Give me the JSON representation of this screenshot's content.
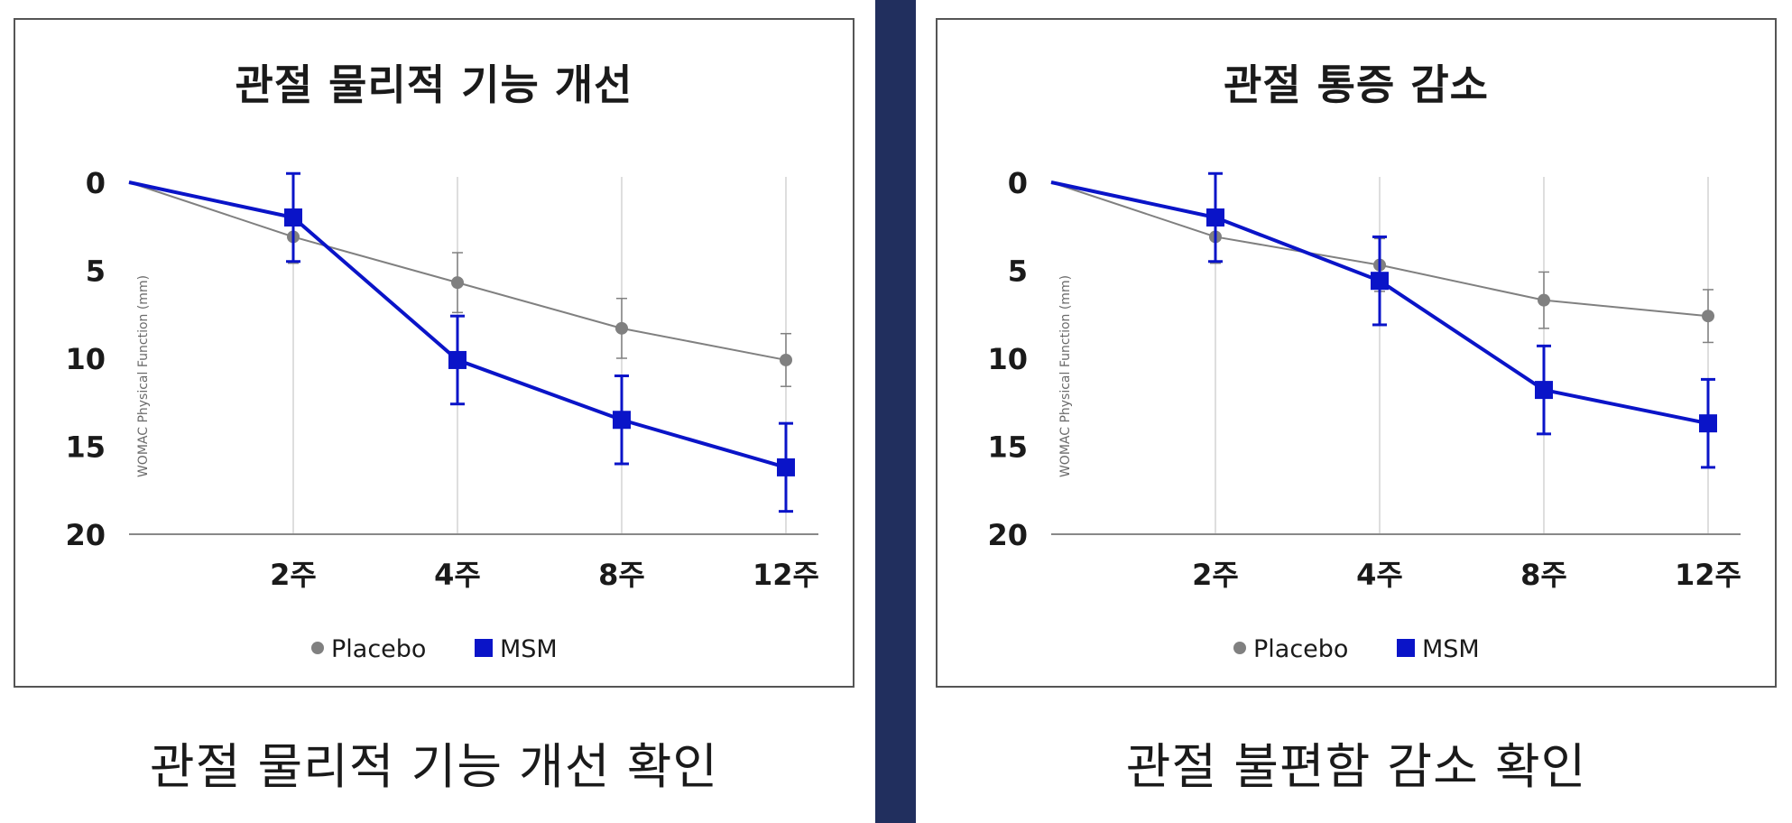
{
  "colors": {
    "divider": "#212f5e",
    "placebo": "#808080",
    "msm": "#0a14c8",
    "grid": "#d4d4d4",
    "border": "#555555"
  },
  "legend": {
    "placebo_label": "Placebo",
    "msm_label": "MSM"
  },
  "captions": {
    "left": "관절 물리적 기능 개선 확인",
    "right": "관절 불편함 감소 확인"
  },
  "chart_data": [
    {
      "type": "line",
      "title": "관절 물리적 기능 개선",
      "xlabel": "",
      "ylabel": "WOMAC Physical Function (mm)",
      "y_inverted": true,
      "ylim": [
        0,
        20
      ],
      "y_ticks": [
        0,
        5,
        10,
        15,
        20
      ],
      "categories": [
        "",
        "2주",
        "4주",
        "8주",
        "12주"
      ],
      "grid": "vertical",
      "legend_position": "bottom",
      "series": [
        {
          "name": "Placebo",
          "marker": "circle",
          "values": [
            0,
            3.1,
            5.7,
            8.3,
            10.1
          ],
          "err_low": [
            0,
            1.5,
            1.7,
            1.7,
            1.5
          ],
          "err_high": [
            0,
            1.5,
            1.7,
            1.7,
            1.5
          ]
        },
        {
          "name": "MSM",
          "marker": "square",
          "values": [
            0,
            2.0,
            10.1,
            13.5,
            16.2
          ],
          "err_low": [
            0,
            2.5,
            2.5,
            2.5,
            2.5
          ],
          "err_high": [
            0,
            2.5,
            2.5,
            2.5,
            2.5
          ]
        }
      ]
    },
    {
      "type": "line",
      "title": "관절 통증 감소",
      "xlabel": "",
      "ylabel": "WOMAC Physical Function (mm)",
      "y_inverted": true,
      "ylim": [
        0,
        20
      ],
      "y_ticks": [
        0,
        5,
        10,
        15,
        20
      ],
      "categories": [
        "",
        "2주",
        "4주",
        "8주",
        "12주"
      ],
      "grid": "vertical",
      "legend_position": "bottom",
      "series": [
        {
          "name": "Placebo",
          "marker": "circle",
          "values": [
            0,
            3.1,
            4.7,
            6.7,
            7.6
          ],
          "err_low": [
            0,
            1.5,
            1.5,
            1.6,
            1.5
          ],
          "err_high": [
            0,
            1.5,
            1.5,
            1.6,
            1.5
          ]
        },
        {
          "name": "MSM",
          "marker": "square",
          "values": [
            0,
            2.0,
            5.6,
            11.8,
            13.7
          ],
          "err_low": [
            0,
            2.5,
            2.5,
            2.5,
            2.5
          ],
          "err_high": [
            0,
            2.5,
            2.5,
            2.5,
            2.5
          ]
        }
      ]
    }
  ]
}
